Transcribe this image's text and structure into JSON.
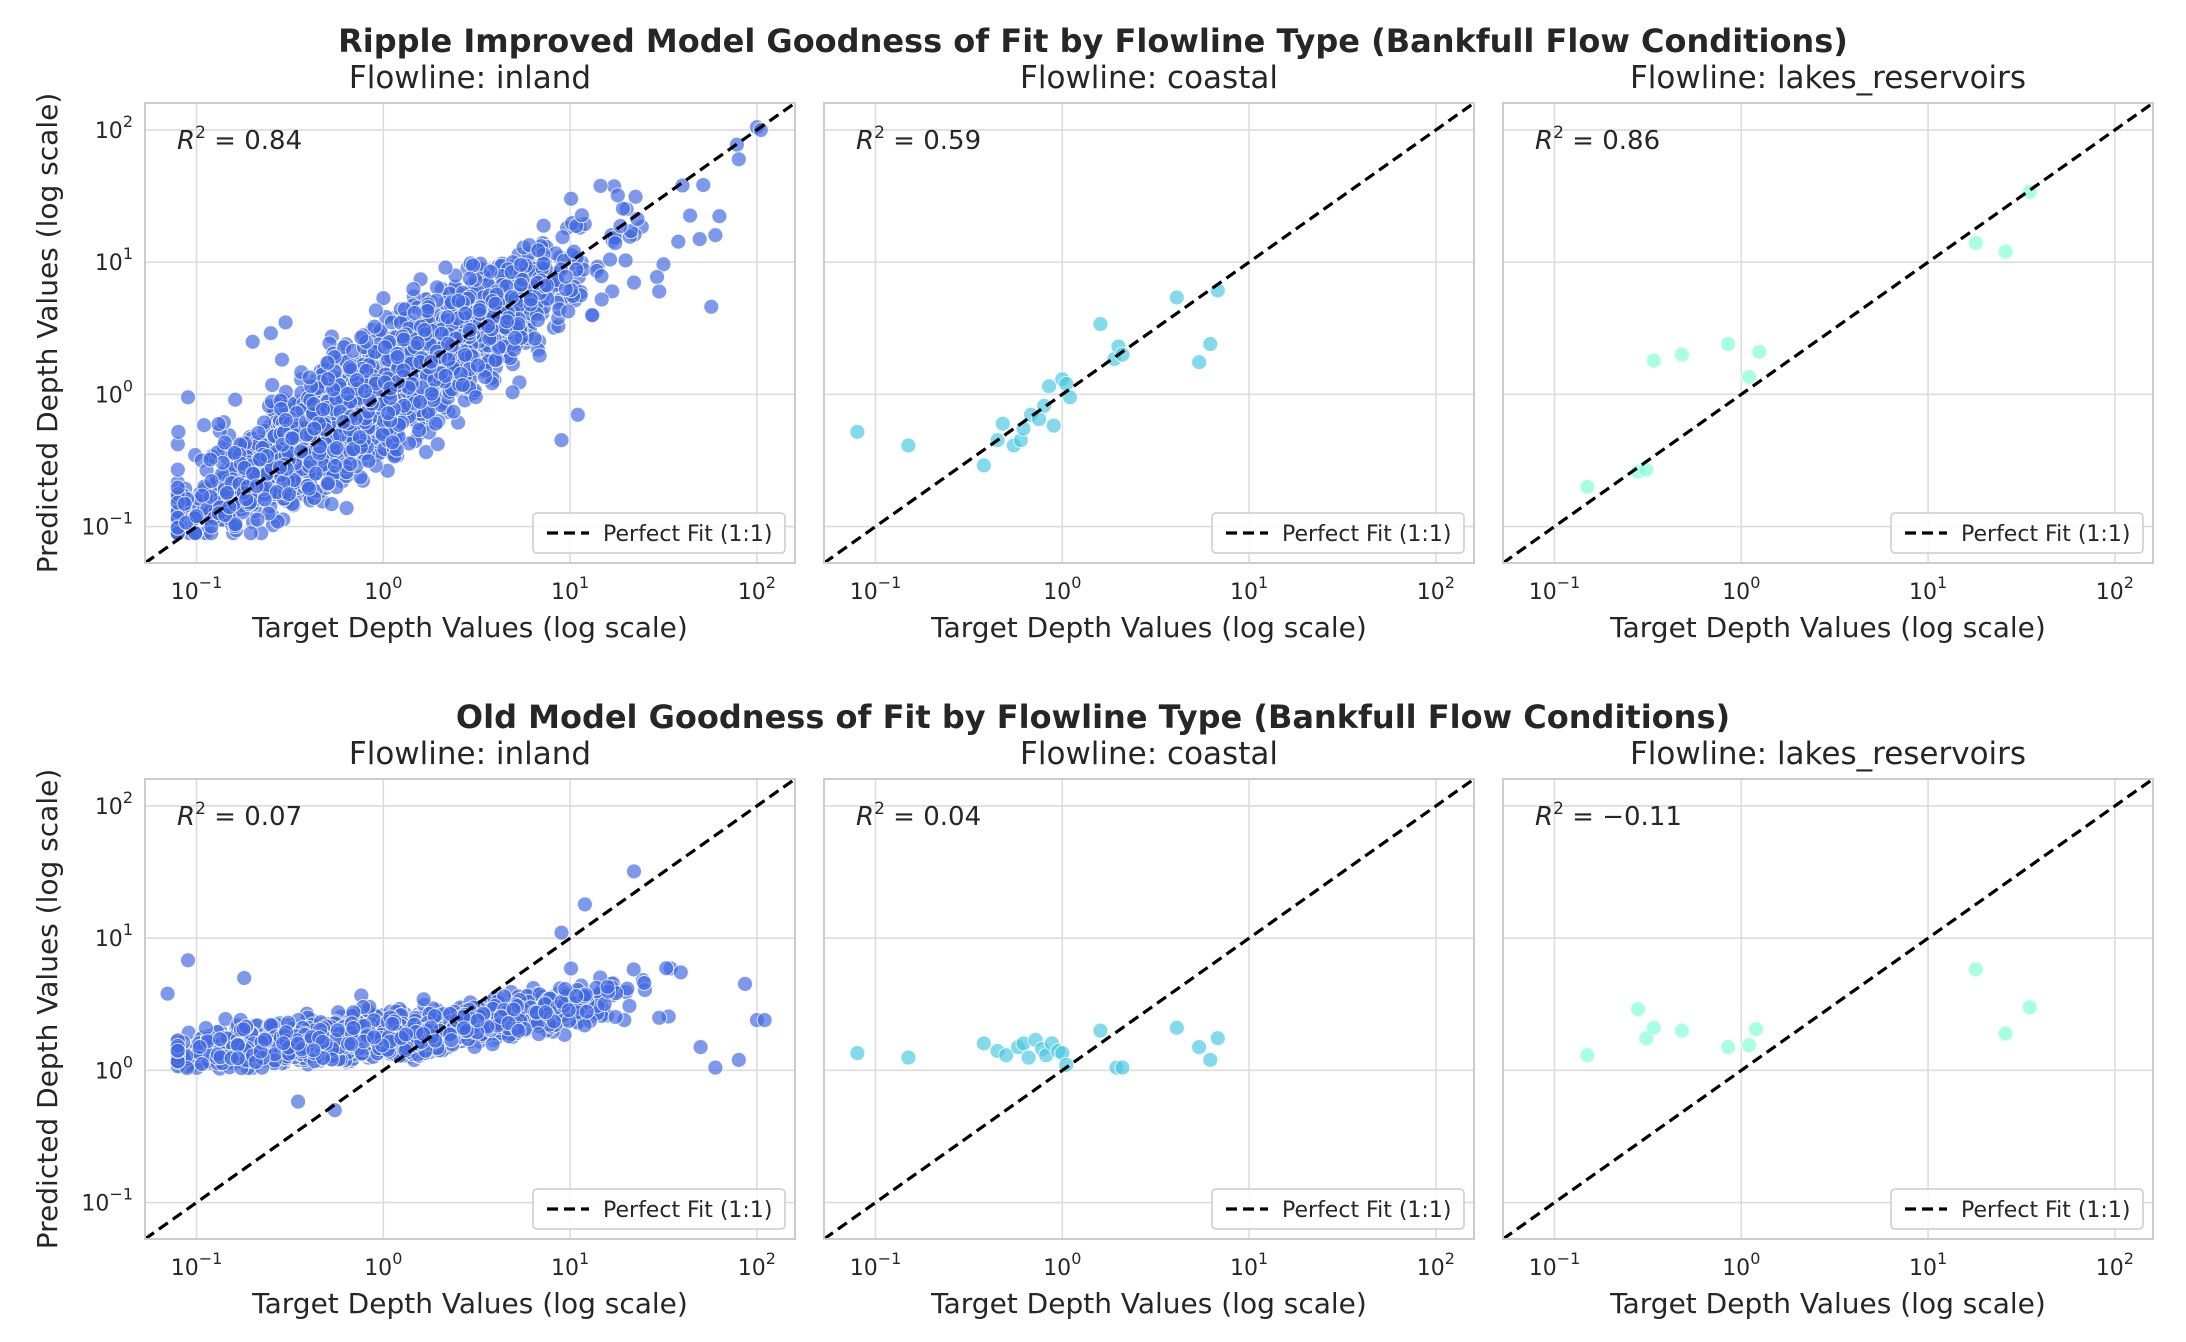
{
  "figure": {
    "rows": [
      {
        "title": "Ripple Improved Model Goodness of Fit by Flowline Type (Bankfull Flow Conditions)",
        "panels": [
          {
            "title": "Flowline: inland",
            "r2_text": "= 0.84"
          },
          {
            "title": "Flowline: coastal",
            "r2_text": "= 0.59"
          },
          {
            "title": "Flowline: lakes_reservoirs",
            "r2_text": "= 0.86"
          }
        ]
      },
      {
        "title": "Old Model Goodness of Fit by Flowline Type (Bankfull Flow Conditions)",
        "panels": [
          {
            "title": "Flowline: inland",
            "r2_text": "= 0.07"
          },
          {
            "title": "Flowline: coastal",
            "r2_text": "= 0.04"
          },
          {
            "title": "Flowline: lakes_reservoirs",
            "r2_text": "= −0.11"
          }
        ]
      }
    ],
    "r2_prefix": "R",
    "r2_sup": "2",
    "xlabel": "Target Depth Values (log scale)",
    "ylabel": "Predicted Depth Values (log scale)",
    "legend_label": "Perfect Fit (1:1)",
    "tick_base": "10",
    "xticks": [
      "−1",
      "0",
      "1",
      "2"
    ],
    "yticks": [
      "−1",
      "0",
      "1",
      "2"
    ]
  },
  "colors": {
    "inland": "#4169e1",
    "coastal": "#48c9e0",
    "lakes_reservoirs": "#7fffd4",
    "grid": "#dcdcdc",
    "spine": "#cccccc",
    "perfect_fit": "#000000"
  },
  "chart_data": [
    {
      "type": "scatter",
      "title": "Flowline: inland",
      "figure_title": "Ripple Improved Model Goodness of Fit by Flowline Type (Bankfull Flow Conditions)",
      "xlabel": "Target Depth Values (log scale)",
      "ylabel": "Predicted Depth Values (log scale)",
      "xscale": "log",
      "yscale": "log",
      "xlim": [
        0.053,
        160
      ],
      "ylim": [
        0.053,
        160
      ],
      "r2": 0.84,
      "color": "#4169e1",
      "cloud": {
        "approx_points": 2500,
        "log10_x_mean": 0.0,
        "log10_x_sd": 0.5,
        "log10_x_range": [
          -1.1,
          2.05
        ],
        "log10_y_slope": 0.9,
        "log10_y_noise": 0.22
      },
      "series": [
        {
          "name": "inland",
          "x": [
            0.08,
            0.09,
            0.1,
            0.12,
            0.15,
            0.2,
            0.25,
            0.3,
            11.0,
            9.0,
            30.0,
            57.0,
            18.0,
            40.0,
            60.0,
            80.0,
            100.0,
            105.0,
            0.28,
            10.5,
            22.0
          ],
          "y": [
            0.52,
            0.95,
            0.12,
            0.1,
            0.14,
            2.5,
            2.9,
            3.5,
            0.7,
            0.45,
            6.0,
            4.6,
            32.0,
            38.0,
            16.0,
            60.0,
            105.0,
            100.0,
            0.28,
            12.0,
            7.0
          ]
        },
        {
          "name": "Perfect Fit (1:1)",
          "x": [
            0.053,
            160
          ],
          "y": [
            0.053,
            160
          ]
        }
      ],
      "legend": {
        "entries": [
          "Perfect Fit (1:1)"
        ],
        "location": "lower right"
      },
      "grid": true
    },
    {
      "type": "scatter",
      "title": "Flowline: coastal",
      "figure_title": "Ripple Improved Model Goodness of Fit by Flowline Type (Bankfull Flow Conditions)",
      "xlabel": "Target Depth Values (log scale)",
      "xscale": "log",
      "yscale": "log",
      "xlim": [
        0.053,
        160
      ],
      "ylim": [
        0.053,
        160
      ],
      "r2": 0.59,
      "color": "#48c9e0",
      "series": [
        {
          "name": "coastal",
          "x": [
            0.08,
            0.15,
            0.38,
            0.45,
            0.48,
            0.55,
            0.6,
            0.62,
            0.68,
            0.75,
            0.8,
            0.85,
            0.9,
            1.0,
            1.05,
            1.1,
            1.6,
            1.9,
            2.0,
            2.1,
            4.1,
            5.4,
            6.2,
            6.8
          ],
          "y": [
            0.52,
            0.41,
            0.29,
            0.45,
            0.6,
            0.41,
            0.45,
            0.55,
            0.7,
            0.65,
            0.82,
            1.15,
            0.58,
            1.3,
            1.2,
            0.95,
            3.4,
            1.85,
            2.3,
            2.0,
            5.4,
            1.75,
            2.4,
            6.1
          ]
        },
        {
          "name": "Perfect Fit (1:1)",
          "x": [
            0.053,
            160
          ],
          "y": [
            0.053,
            160
          ]
        }
      ],
      "legend": {
        "entries": [
          "Perfect Fit (1:1)"
        ],
        "location": "lower right"
      },
      "grid": true
    },
    {
      "type": "scatter",
      "title": "Flowline: lakes_reservoirs",
      "figure_title": "Ripple Improved Model Goodness of Fit by Flowline Type (Bankfull Flow Conditions)",
      "xlabel": "Target Depth Values (log scale)",
      "xscale": "log",
      "yscale": "log",
      "xlim": [
        0.053,
        160
      ],
      "ylim": [
        0.053,
        160
      ],
      "r2": 0.86,
      "color": "#7fffd4",
      "series": [
        {
          "name": "lakes_reservoirs",
          "x": [
            0.15,
            0.28,
            0.31,
            0.34,
            0.48,
            0.85,
            1.1,
            1.25,
            18.0,
            26.0,
            35.0
          ],
          "y": [
            0.2,
            0.26,
            0.27,
            1.8,
            2.0,
            2.4,
            1.35,
            2.1,
            14.0,
            12.0,
            34.0
          ]
        },
        {
          "name": "Perfect Fit (1:1)",
          "x": [
            0.053,
            160
          ],
          "y": [
            0.053,
            160
          ]
        }
      ],
      "legend": {
        "entries": [
          "Perfect Fit (1:1)"
        ],
        "location": "lower right"
      },
      "grid": true
    },
    {
      "type": "scatter",
      "title": "Flowline: inland",
      "figure_title": "Old Model Goodness of Fit by Flowline Type (Bankfull Flow Conditions)",
      "xlabel": "Target Depth Values (log scale)",
      "ylabel": "Predicted Depth Values (log scale)",
      "xscale": "log",
      "yscale": "log",
      "xlim": [
        0.053,
        160
      ],
      "ylim": [
        0.053,
        160
      ],
      "r2": 0.07,
      "color": "#4169e1",
      "cloud": {
        "approx_points": 2500,
        "log10_x_mean": 0.0,
        "log10_x_sd": 0.5,
        "log10_x_range": [
          -1.1,
          2.05
        ],
        "log10_y_base": 0.18,
        "log10_y_slope": 0.12,
        "log10_y_noise": 0.09,
        "log10_y_min": 0.0
      },
      "series": [
        {
          "name": "inland",
          "x": [
            0.07,
            0.09,
            0.18,
            0.35,
            0.55,
            9.0,
            12.0,
            22.0,
            30.0,
            50.0,
            60.0,
            80.0,
            100.0,
            110.0
          ],
          "y": [
            3.8,
            6.8,
            5.0,
            0.58,
            0.5,
            11.0,
            18.0,
            32.0,
            2.5,
            1.5,
            1.05,
            1.2,
            2.4,
            2.4
          ]
        },
        {
          "name": "Perfect Fit (1:1)",
          "x": [
            0.053,
            160
          ],
          "y": [
            0.053,
            160
          ]
        }
      ],
      "legend": {
        "entries": [
          "Perfect Fit (1:1)"
        ],
        "location": "lower right"
      },
      "grid": true
    },
    {
      "type": "scatter",
      "title": "Flowline: coastal",
      "figure_title": "Old Model Goodness of Fit by Flowline Type (Bankfull Flow Conditions)",
      "xlabel": "Target Depth Values (log scale)",
      "xscale": "log",
      "yscale": "log",
      "xlim": [
        0.053,
        160
      ],
      "ylim": [
        0.053,
        160
      ],
      "r2": 0.04,
      "color": "#48c9e0",
      "series": [
        {
          "name": "coastal",
          "x": [
            0.08,
            0.15,
            0.38,
            0.45,
            0.5,
            0.58,
            0.62,
            0.66,
            0.72,
            0.78,
            0.82,
            0.88,
            0.95,
            1.0,
            1.05,
            1.6,
            1.95,
            2.1,
            4.1,
            5.4,
            6.2,
            6.8
          ],
          "y": [
            1.35,
            1.25,
            1.6,
            1.4,
            1.3,
            1.5,
            1.6,
            1.25,
            1.7,
            1.45,
            1.3,
            1.6,
            1.4,
            1.35,
            1.1,
            2.0,
            1.05,
            1.05,
            2.1,
            1.5,
            1.2,
            1.75
          ]
        },
        {
          "name": "Perfect Fit (1:1)",
          "x": [
            0.053,
            160
          ],
          "y": [
            0.053,
            160
          ]
        }
      ],
      "legend": {
        "entries": [
          "Perfect Fit (1:1)"
        ],
        "location": "lower right"
      },
      "grid": true
    },
    {
      "type": "scatter",
      "title": "Flowline: lakes_reservoirs",
      "figure_title": "Old Model Goodness of Fit by Flowline Type (Bankfull Flow Conditions)",
      "xlabel": "Target Depth Values (log scale)",
      "xscale": "log",
      "yscale": "log",
      "xlim": [
        0.053,
        160
      ],
      "ylim": [
        0.053,
        160
      ],
      "r2": -0.11,
      "color": "#7fffd4",
      "series": [
        {
          "name": "lakes_reservoirs",
          "x": [
            0.15,
            0.28,
            0.31,
            0.34,
            0.48,
            0.85,
            1.1,
            1.2,
            18.0,
            26.0,
            35.0
          ],
          "y": [
            1.3,
            2.9,
            1.75,
            2.1,
            2.0,
            1.5,
            1.55,
            2.05,
            5.8,
            1.9,
            3.0
          ]
        },
        {
          "name": "Perfect Fit (1:1)",
          "x": [
            0.053,
            160
          ],
          "y": [
            0.053,
            160
          ]
        }
      ],
      "legend": {
        "entries": [
          "Perfect Fit (1:1)"
        ],
        "location": "lower right"
      },
      "grid": true
    }
  ]
}
